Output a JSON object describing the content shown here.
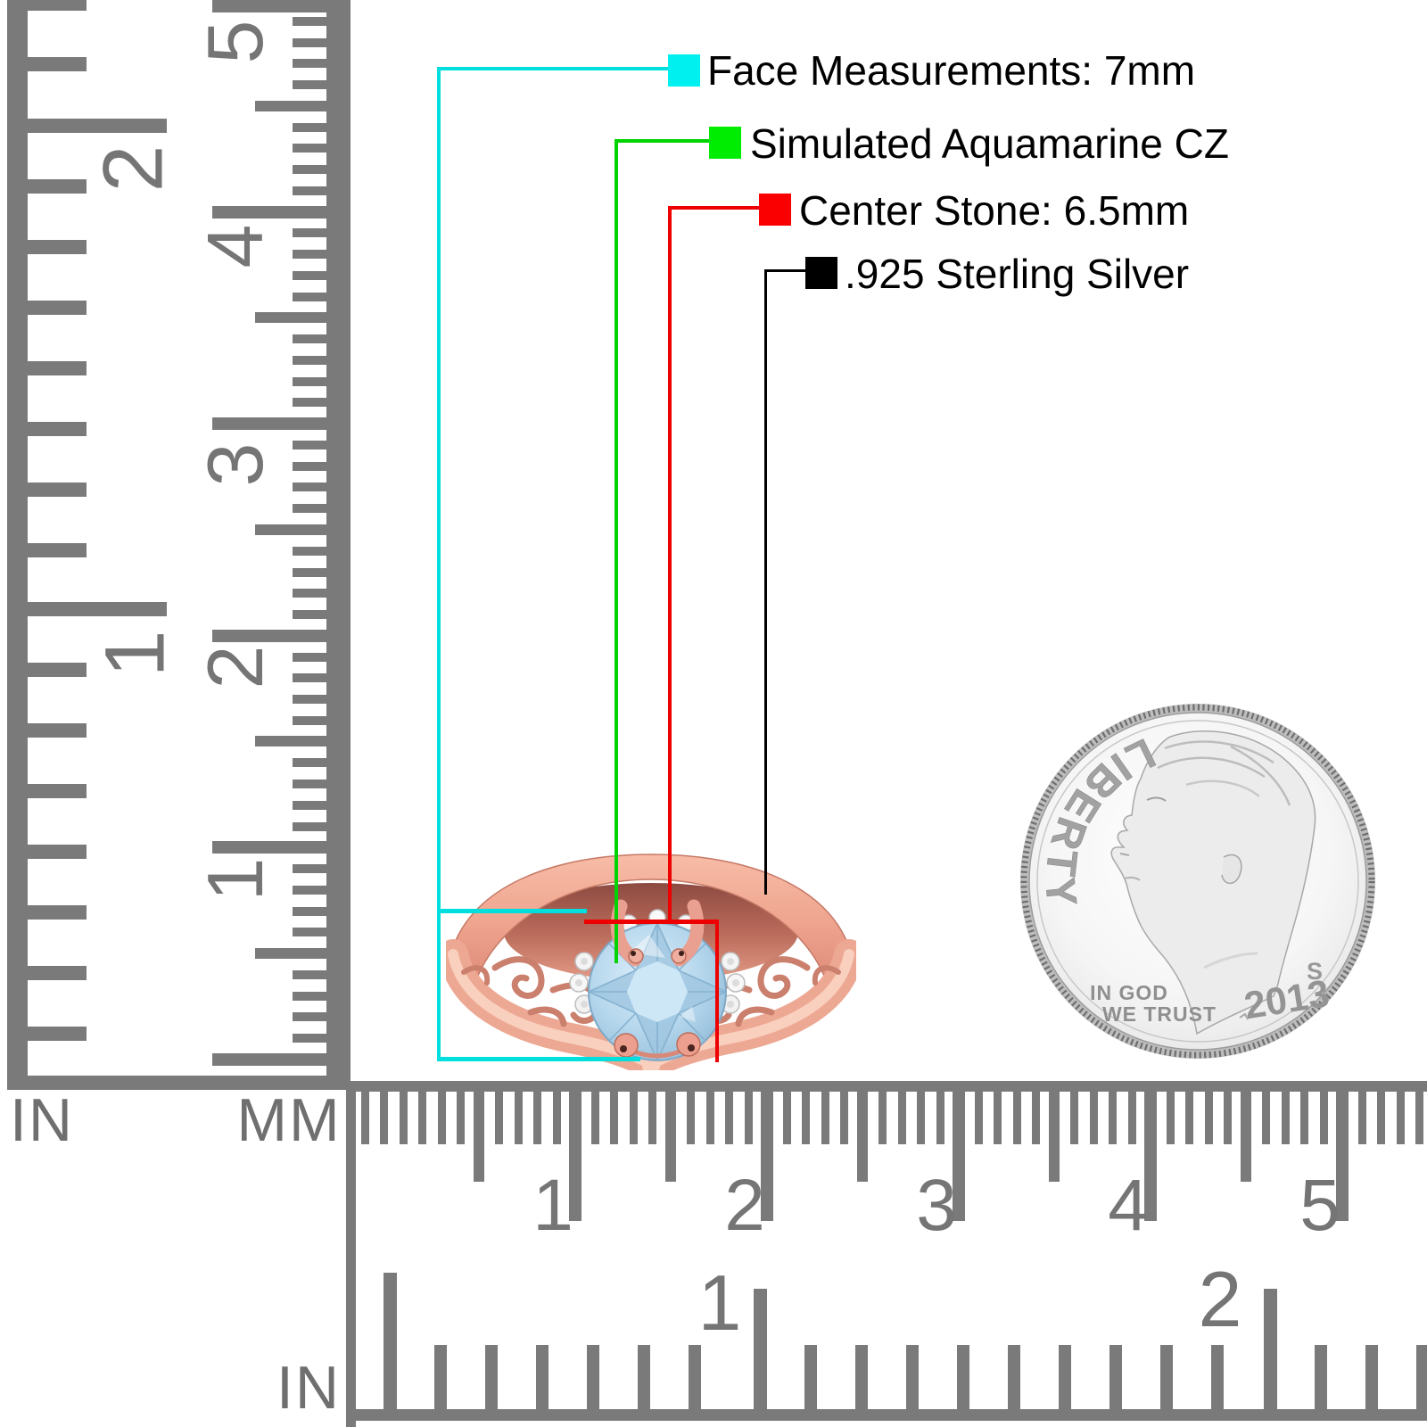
{
  "annotations": {
    "face": {
      "label": "Face Measurements: 7mm",
      "color": "#00f0f0"
    },
    "stone": {
      "label": "Simulated Aquamarine CZ",
      "color": "#00ec00"
    },
    "center": {
      "label": "Center Stone: 6.5mm",
      "color": "#fb0000"
    },
    "metal": {
      "label": ".925 Sterling Silver",
      "color": "#000000"
    }
  },
  "rulers": {
    "left_inch": {
      "label": "IN",
      "numbers": [
        "2",
        "1"
      ]
    },
    "left_mm": {
      "label": "MM",
      "numbers": [
        "5",
        "4",
        "3",
        "2",
        "1"
      ]
    },
    "bottom_mm": {
      "numbers": [
        "1",
        "2",
        "3",
        "4",
        "5"
      ]
    },
    "bottom_inch": {
      "label": "IN",
      "numbers": [
        "1",
        "2"
      ]
    }
  },
  "coin": {
    "legend": "LIBERTY",
    "motto_line1": "IN GOD",
    "motto_line2": "WE TRUST",
    "year": "2013",
    "mint_mark": "S"
  }
}
